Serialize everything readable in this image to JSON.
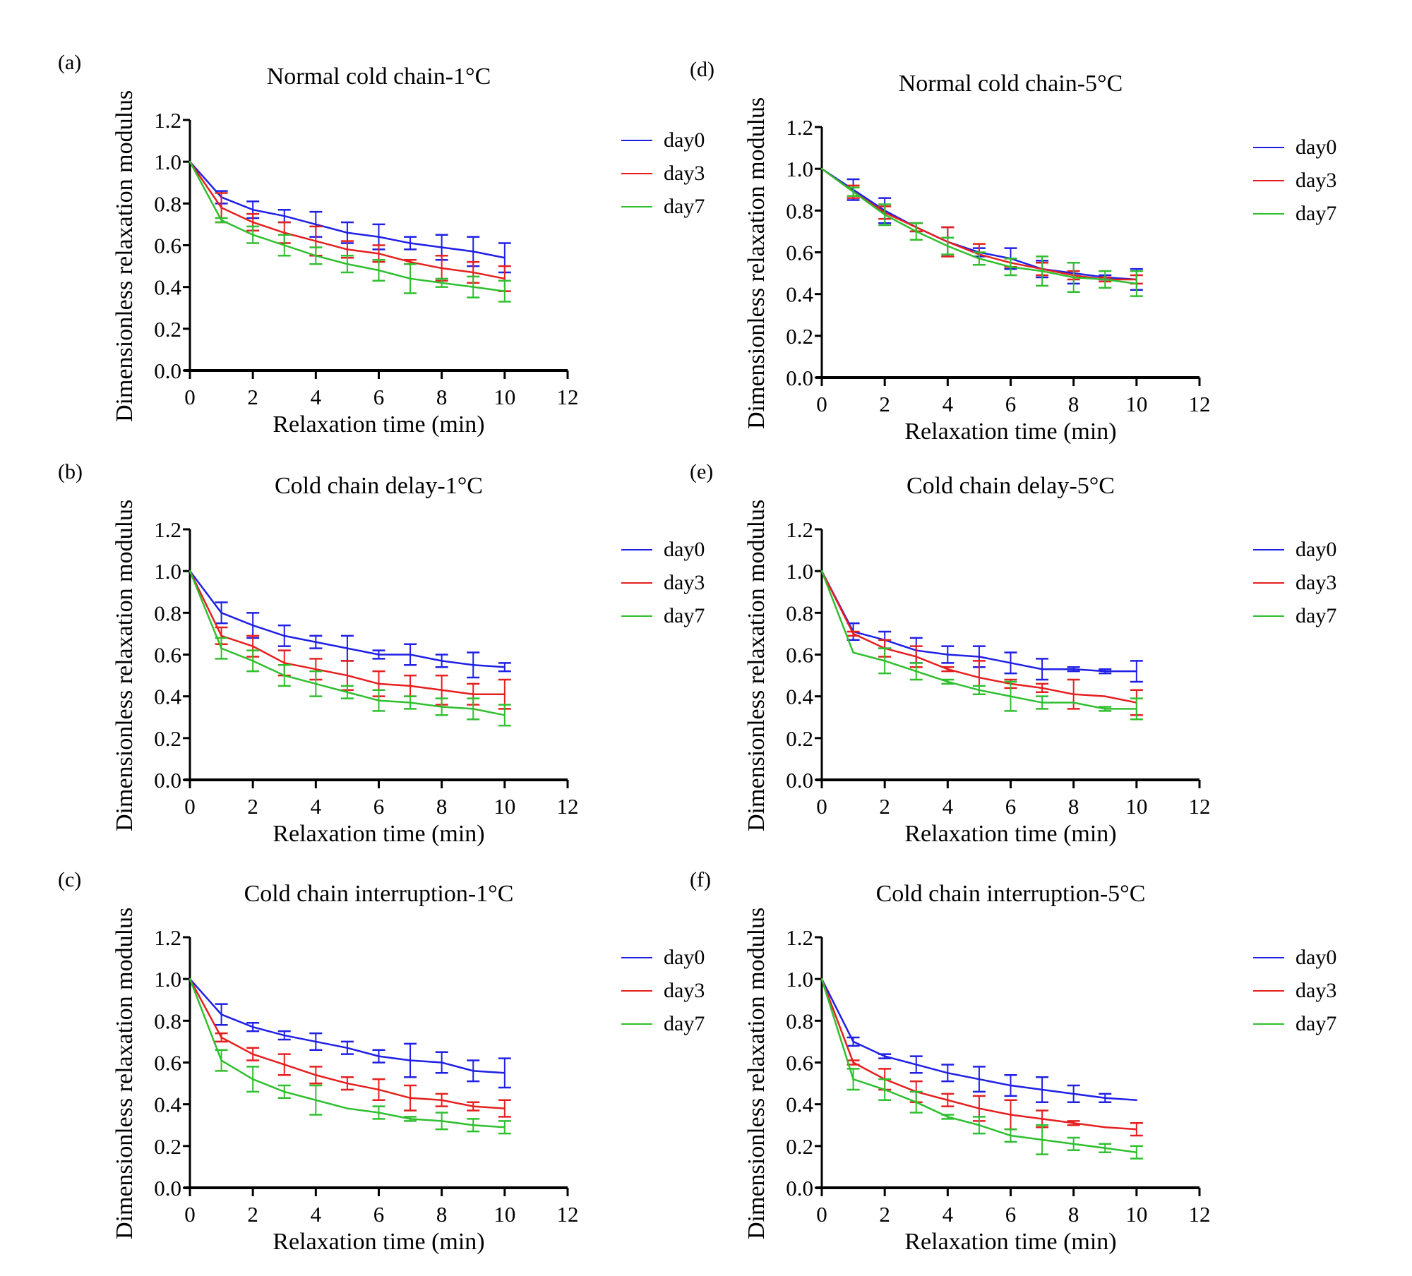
{
  "figure": {
    "common": {
      "xlabel": "Relaxation time (min)",
      "ylabel": "Dimensionless relaxation modulus"
    }
  },
  "chart_data": [
    {
      "panel": "(a)",
      "type": "line",
      "title": "Normal cold chain-1°C",
      "xlabel": "Relaxation time (min)",
      "ylabel": "Dimensionless relaxation modulus",
      "xlim": [
        0,
        12
      ],
      "ylim": [
        0,
        1.2
      ],
      "xticks": [
        "0",
        "2",
        "4",
        "6",
        "8",
        "10",
        "12"
      ],
      "yticks": [
        "0.0",
        "0.2",
        "0.4",
        "0.6",
        "0.8",
        "1.0",
        "1.2"
      ],
      "legend_position": "right",
      "x": [
        0,
        1,
        2,
        3,
        4,
        5,
        6,
        7,
        8,
        9,
        10
      ],
      "series": [
        {
          "name": "day0",
          "color": "#1f1fe6",
          "values": [
            1.0,
            0.83,
            0.77,
            0.74,
            0.7,
            0.66,
            0.64,
            0.61,
            0.59,
            0.57,
            0.54
          ],
          "errors": [
            0,
            0.03,
            0.04,
            0.03,
            0.06,
            0.05,
            0.06,
            0.03,
            0.06,
            0.07,
            0.07
          ]
        },
        {
          "name": "day3",
          "color": "#e61f1f",
          "values": [
            1.0,
            0.78,
            0.71,
            0.66,
            0.62,
            0.58,
            0.56,
            0.52,
            0.49,
            0.47,
            0.44
          ],
          "errors": [
            0,
            0.07,
            0.04,
            0.05,
            0.07,
            0.04,
            0.04,
            0.01,
            0.06,
            0.05,
            0.06
          ]
        },
        {
          "name": "day7",
          "color": "#2fbf2f",
          "values": [
            1.0,
            0.72,
            0.65,
            0.6,
            0.55,
            0.51,
            0.48,
            0.44,
            0.42,
            0.4,
            0.38
          ],
          "errors": [
            0,
            0.01,
            0.04,
            0.05,
            0.04,
            0.04,
            0.05,
            0.07,
            0.02,
            0.05,
            0.05
          ]
        }
      ]
    },
    {
      "panel": "(b)",
      "type": "line",
      "title": "Cold chain delay-1°C",
      "xlabel": "Relaxation time (min)",
      "ylabel": "Dimensionless relaxation modulus",
      "xlim": [
        0,
        12
      ],
      "ylim": [
        0,
        1.2
      ],
      "xticks": [
        "0",
        "2",
        "4",
        "6",
        "8",
        "10",
        "12"
      ],
      "yticks": [
        "0.0",
        "0.2",
        "0.4",
        "0.6",
        "0.8",
        "1.0",
        "1.2"
      ],
      "legend_position": "right",
      "x": [
        0,
        1,
        2,
        3,
        4,
        5,
        6,
        7,
        8,
        9,
        10
      ],
      "series": [
        {
          "name": "day0",
          "color": "#1f1fe6",
          "values": [
            1.0,
            0.8,
            0.74,
            0.69,
            0.66,
            0.63,
            0.6,
            0.6,
            0.57,
            0.55,
            0.54
          ],
          "errors": [
            0,
            0.05,
            0.06,
            0.05,
            0.03,
            0.06,
            0.02,
            0.05,
            0.03,
            0.06,
            0.02
          ]
        },
        {
          "name": "day3",
          "color": "#e61f1f",
          "values": [
            1.0,
            0.69,
            0.64,
            0.56,
            0.53,
            0.5,
            0.46,
            0.45,
            0.43,
            0.41,
            0.41
          ],
          "errors": [
            0,
            0.04,
            0.05,
            0.06,
            0.05,
            0.07,
            0.06,
            0.05,
            0.07,
            0.05,
            0.07
          ]
        },
        {
          "name": "day7",
          "color": "#2fbf2f",
          "values": [
            1.0,
            0.63,
            0.57,
            0.5,
            0.46,
            0.42,
            0.38,
            0.37,
            0.35,
            0.34,
            0.31
          ],
          "errors": [
            0,
            0.05,
            0.05,
            0.05,
            0.06,
            0.03,
            0.05,
            0.03,
            0.04,
            0.05,
            0.05
          ]
        }
      ]
    },
    {
      "panel": "(c)",
      "type": "line",
      "title": "Cold chain interruption-1°C",
      "xlabel": "Relaxation time (min)",
      "ylabel": "Dimensionless relaxation modulus",
      "xlim": [
        0,
        12
      ],
      "ylim": [
        0,
        1.2
      ],
      "xticks": [
        "0",
        "2",
        "4",
        "6",
        "8",
        "10",
        "12"
      ],
      "yticks": [
        "0.0",
        "0.2",
        "0.4",
        "0.6",
        "0.8",
        "1.0",
        "1.2"
      ],
      "legend_position": "right",
      "x": [
        0,
        1,
        2,
        3,
        4,
        5,
        6,
        7,
        8,
        9,
        10
      ],
      "series": [
        {
          "name": "day0",
          "color": "#1f1fe6",
          "values": [
            1.0,
            0.83,
            0.77,
            0.73,
            0.7,
            0.67,
            0.63,
            0.61,
            0.6,
            0.56,
            0.55
          ],
          "errors": [
            0,
            0.05,
            0.02,
            0.02,
            0.04,
            0.03,
            0.03,
            0.08,
            0.05,
            0.05,
            0.07
          ]
        },
        {
          "name": "day3",
          "color": "#e61f1f",
          "values": [
            1.0,
            0.72,
            0.64,
            0.59,
            0.54,
            0.5,
            0.47,
            0.43,
            0.42,
            0.39,
            0.38
          ],
          "errors": [
            0,
            0.02,
            0.03,
            0.05,
            0.04,
            0.03,
            0.05,
            0.06,
            0.03,
            0.02,
            0.04
          ]
        },
        {
          "name": "day7",
          "color": "#2fbf2f",
          "values": [
            1.0,
            0.61,
            0.52,
            0.46,
            0.42,
            0.38,
            0.36,
            0.33,
            0.32,
            0.3,
            0.29
          ],
          "errors": [
            0,
            0.05,
            0.06,
            0.03,
            0.07,
            0.0,
            0.03,
            0.01,
            0.04,
            0.03,
            0.03
          ]
        }
      ]
    },
    {
      "panel": "(d)",
      "type": "line",
      "title": "Normal cold chain-5°C",
      "xlabel": "Relaxation time (min)",
      "ylabel": "Dimensionless relaxation modulus",
      "xlim": [
        0,
        12
      ],
      "ylim": [
        0,
        1.2
      ],
      "xticks": [
        "0",
        "2",
        "4",
        "6",
        "8",
        "10",
        "12"
      ],
      "yticks": [
        "0.0",
        "0.2",
        "0.4",
        "0.6",
        "0.8",
        "1.0",
        "1.2"
      ],
      "legend_position": "right",
      "x": [
        0,
        1,
        2,
        3,
        4,
        5,
        6,
        7,
        8,
        9,
        10
      ],
      "series": [
        {
          "name": "day0",
          "color": "#1f1fe6",
          "values": [
            1.0,
            0.9,
            0.8,
            0.72,
            0.65,
            0.6,
            0.57,
            0.52,
            0.5,
            0.48,
            0.47
          ],
          "errors": [
            0,
            0.05,
            0.06,
            0.02,
            0.07,
            0.02,
            0.05,
            0.04,
            0.05,
            0.01,
            0.05
          ]
        },
        {
          "name": "day3",
          "color": "#e61f1f",
          "values": [
            1.0,
            0.89,
            0.79,
            0.72,
            0.65,
            0.59,
            0.55,
            0.52,
            0.49,
            0.47,
            0.47
          ],
          "errors": [
            0,
            0.03,
            0.03,
            0.02,
            0.07,
            0.05,
            0.02,
            0.03,
            0.02,
            0.01,
            0.02
          ]
        },
        {
          "name": "day7",
          "color": "#2fbf2f",
          "values": [
            1.0,
            0.89,
            0.78,
            0.7,
            0.63,
            0.57,
            0.53,
            0.51,
            0.48,
            0.47,
            0.45
          ],
          "errors": [
            0,
            0.02,
            0.05,
            0.04,
            0.04,
            0.03,
            0.04,
            0.07,
            0.07,
            0.04,
            0.06
          ]
        }
      ]
    },
    {
      "panel": "(e)",
      "type": "line",
      "title": "Cold chain delay-5°C",
      "xlabel": "Relaxation time (min)",
      "ylabel": "Dimensionless relaxation modulus",
      "xlim": [
        0,
        12
      ],
      "ylim": [
        0,
        1.2
      ],
      "xticks": [
        "0",
        "2",
        "4",
        "6",
        "8",
        "10",
        "12"
      ],
      "yticks": [
        "0.0",
        "0.2",
        "0.4",
        "0.6",
        "0.8",
        "1.0",
        "1.2"
      ],
      "legend_position": "right",
      "x": [
        0,
        1,
        2,
        3,
        4,
        5,
        6,
        7,
        8,
        9,
        10
      ],
      "series": [
        {
          "name": "day0",
          "color": "#1f1fe6",
          "values": [
            1.0,
            0.71,
            0.67,
            0.62,
            0.6,
            0.59,
            0.56,
            0.53,
            0.53,
            0.52,
            0.52
          ],
          "errors": [
            0,
            0.04,
            0.04,
            0.06,
            0.04,
            0.05,
            0.05,
            0.05,
            0.01,
            0.01,
            0.05
          ]
        },
        {
          "name": "day3",
          "color": "#e61f1f",
          "values": [
            1.0,
            0.7,
            0.63,
            0.59,
            0.53,
            0.49,
            0.46,
            0.44,
            0.41,
            0.4,
            0.37
          ],
          "errors": [
            0,
            0.01,
            0.04,
            0.05,
            0.01,
            0.08,
            0.02,
            0.02,
            0.07,
            0.0,
            0.06
          ]
        },
        {
          "name": "day7",
          "color": "#2fbf2f",
          "values": [
            1.0,
            0.61,
            0.57,
            0.52,
            0.47,
            0.43,
            0.4,
            0.37,
            0.37,
            0.34,
            0.34
          ],
          "errors": [
            0,
            0.0,
            0.06,
            0.04,
            0.01,
            0.02,
            0.07,
            0.03,
            0.0,
            0.01,
            0.05
          ]
        }
      ]
    },
    {
      "panel": "(f)",
      "type": "line",
      "title": "Cold chain interruption-5°C",
      "xlabel": "Relaxation time (min)",
      "ylabel": "Dimensionless relaxation modulus",
      "xlim": [
        0,
        12
      ],
      "ylim": [
        0,
        1.2
      ],
      "xticks": [
        "0",
        "2",
        "4",
        "6",
        "8",
        "10",
        "12"
      ],
      "yticks": [
        "0.0",
        "0.2",
        "0.4",
        "0.6",
        "0.8",
        "1.0",
        "1.2"
      ],
      "legend_position": "right",
      "x": [
        0,
        1,
        2,
        3,
        4,
        5,
        6,
        7,
        8,
        9,
        10
      ],
      "series": [
        {
          "name": "day0",
          "color": "#1f1fe6",
          "values": [
            1.0,
            0.7,
            0.63,
            0.59,
            0.55,
            0.52,
            0.49,
            0.47,
            0.45,
            0.43,
            0.42
          ],
          "errors": [
            0,
            0.02,
            0.01,
            0.04,
            0.04,
            0.06,
            0.05,
            0.06,
            0.04,
            0.02,
            0.0
          ]
        },
        {
          "name": "day3",
          "color": "#e61f1f",
          "values": [
            1.0,
            0.6,
            0.52,
            0.46,
            0.42,
            0.38,
            0.35,
            0.33,
            0.31,
            0.29,
            0.28
          ],
          "errors": [
            0,
            0.01,
            0.05,
            0.05,
            0.03,
            0.06,
            0.07,
            0.04,
            0.01,
            0.0,
            0.03
          ]
        },
        {
          "name": "day7",
          "color": "#2fbf2f",
          "values": [
            1.0,
            0.52,
            0.47,
            0.41,
            0.34,
            0.3,
            0.25,
            0.23,
            0.21,
            0.19,
            0.17
          ],
          "errors": [
            0,
            0.05,
            0.05,
            0.05,
            0.01,
            0.04,
            0.03,
            0.07,
            0.03,
            0.02,
            0.03
          ]
        }
      ]
    }
  ]
}
